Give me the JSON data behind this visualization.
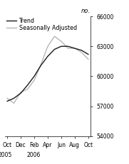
{
  "title": "",
  "ylabel": "no.",
  "ylim": [
    54000,
    66000
  ],
  "yticks": [
    54000,
    57000,
    60000,
    63000,
    66000
  ],
  "x_labels": [
    "Oct",
    "Dec",
    "Feb",
    "Apr",
    "Jun",
    "Aug",
    "Oct"
  ],
  "trend_x": [
    0,
    1,
    2,
    3,
    4,
    5,
    6,
    7,
    8,
    9,
    10,
    11,
    12
  ],
  "trend_y": [
    57500,
    57800,
    58300,
    59100,
    60000,
    61100,
    62000,
    62700,
    63000,
    63000,
    62800,
    62600,
    62200
  ],
  "seasonal_x": [
    0,
    1,
    2,
    3,
    4,
    5,
    6,
    7,
    8,
    9,
    10,
    11,
    12
  ],
  "seasonal_y": [
    57800,
    57300,
    58400,
    58700,
    59600,
    61200,
    63000,
    64000,
    63500,
    62800,
    62800,
    62400,
    61700
  ],
  "trend_color": "#1a1a1a",
  "seasonal_color": "#b0b0b0",
  "background_color": "#ffffff",
  "legend_fontsize": 5.8,
  "tick_fontsize": 5.5,
  "ylabel_fontsize": 6.0,
  "linewidth_trend": 1.0,
  "linewidth_seasonal": 0.9
}
